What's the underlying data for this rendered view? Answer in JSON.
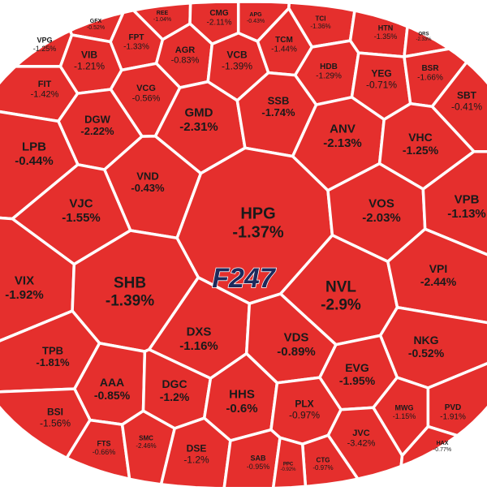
{
  "chart_data": {
    "type": "voronoi-treemap",
    "logo": "F247",
    "color": "#e52f2d",
    "categories": [
      "GFX",
      "REE",
      "CMG",
      "APG",
      "TCI",
      "HTN",
      "ORS",
      "VPG",
      "VIB",
      "FPT",
      "AGR",
      "VCB",
      "TCM",
      "HDB",
      "YEG",
      "BSR",
      "FIT",
      "VCG",
      "GMD",
      "SSB",
      "SBT",
      "DGW",
      "ANV",
      "VHC",
      "LPB",
      "VND",
      "HPG",
      "VJC",
      "VOS",
      "VPB",
      "VIX",
      "SHB",
      "NVL",
      "VPI",
      "DXS",
      "VDS",
      "TPB",
      "NKG",
      "AAA",
      "DGC",
      "HHS",
      "EVG",
      "BSI",
      "PLX",
      "MWG",
      "PVD",
      "FTS",
      "SMC",
      "DSE",
      "SAB",
      "JVC",
      "CTG",
      "PPC",
      "HAX"
    ],
    "values": [
      -0.52,
      -1.04,
      -2.11,
      -0.43,
      -1.36,
      -1.35,
      -2.33,
      -1.25,
      -1.21,
      -1.33,
      -0.83,
      -1.39,
      -1.44,
      -1.29,
      -0.71,
      -1.66,
      -1.42,
      -0.56,
      -2.31,
      -1.74,
      -0.41,
      -2.22,
      -2.13,
      -1.25,
      -0.44,
      -0.43,
      -1.37,
      -1.55,
      -2.03,
      -1.13,
      -1.92,
      -1.39,
      -2.9,
      -2.44,
      -1.16,
      -0.89,
      -1.81,
      -0.52,
      -0.85,
      -1.2,
      -0.6,
      -1.95,
      -1.56,
      -0.97,
      -1.15,
      -1.91,
      -0.66,
      -2.46,
      -1.2,
      -0.95,
      -3.42,
      -0.97,
      -0.92,
      -0.77
    ],
    "value_labels": [
      "-0.52%",
      "-1.04%",
      "-2.11%",
      "-0.43%",
      "-1.36%",
      "-1.35%",
      "-2.33%",
      "-1.25%",
      "-1.21%",
      "-1.33%",
      "-0.83%",
      "-1.39%",
      "-1.44%",
      "-1.29%",
      "-0.71%",
      "-1.66%",
      "-1.42%",
      "-0.56%",
      "-2.31%",
      "-1.74%",
      "-0.41%",
      "-2.22%",
      "-2.13%",
      "-1.25%",
      "-0.44%",
      "-0.43%",
      "-1.37%",
      "-1.55%",
      "-2.03%",
      "-1.13%",
      "-1.92%",
      "-1.39%",
      "-2.9%",
      "-2.44%",
      "-1.16%",
      "-0.89%",
      "-1.81%",
      "-0.52%",
      "-0.85%",
      "-1.2%",
      "-0.6%",
      "-1.95%",
      "-1.56%",
      "-0.97%",
      "-1.15%",
      "-1.91%",
      "-0.66%",
      "-2.46%",
      "-1.2%",
      "-0.95%",
      "-3.42%",
      "-0.97%",
      "-0.92%",
      "-0.77%"
    ]
  }
}
